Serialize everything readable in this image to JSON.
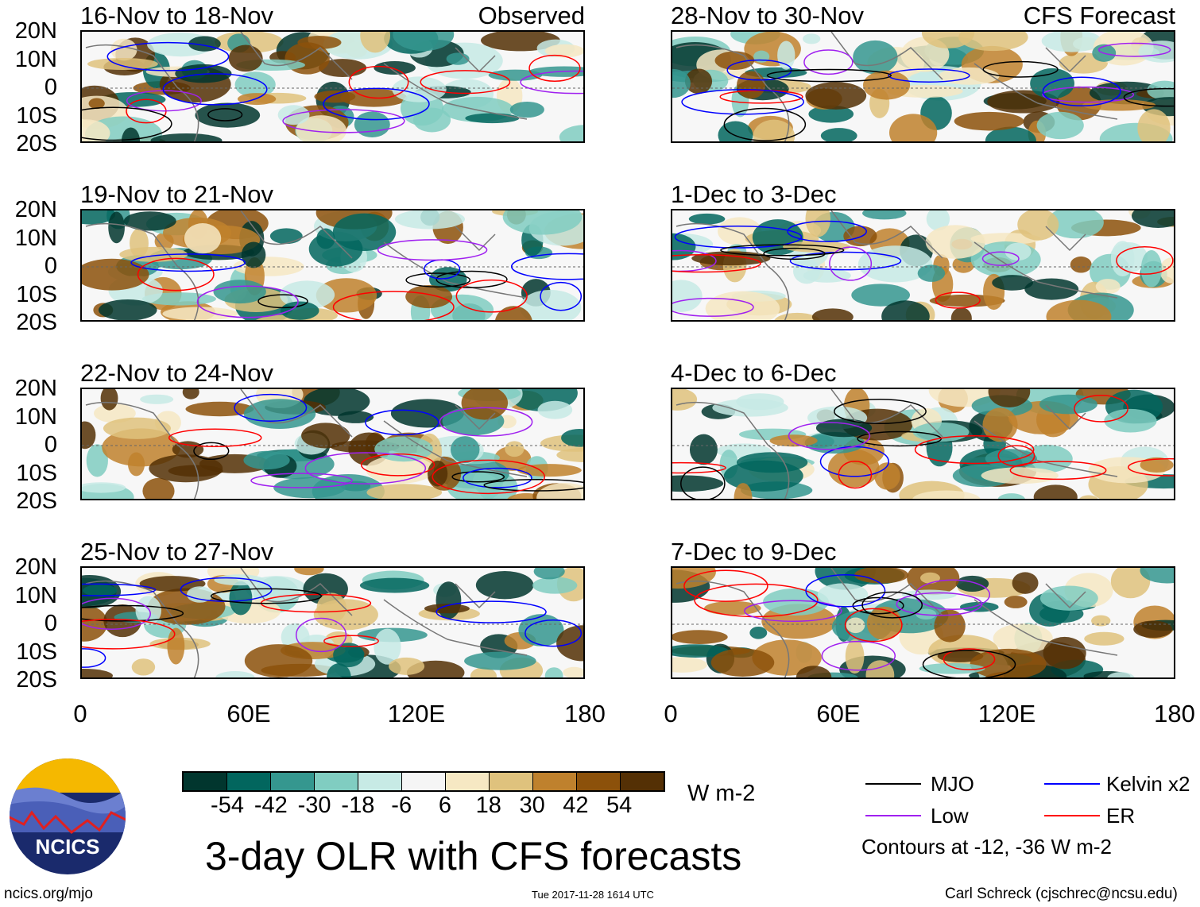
{
  "panels": [
    {
      "title": "16-Nov to 18-Nov",
      "tag": "Observed",
      "col": 0,
      "row": 0,
      "seed": 3
    },
    {
      "title": "19-Nov to 21-Nov",
      "tag": "",
      "col": 0,
      "row": 1,
      "seed": 7
    },
    {
      "title": "22-Nov to 24-Nov",
      "tag": "",
      "col": 0,
      "row": 2,
      "seed": 11
    },
    {
      "title": "25-Nov to 27-Nov",
      "tag": "",
      "col": 0,
      "row": 3,
      "seed": 19
    },
    {
      "title": "28-Nov to 30-Nov",
      "tag": "CFS Forecast",
      "col": 1,
      "row": 0,
      "seed": 23
    },
    {
      "title": "1-Dec to 3-Dec",
      "tag": "",
      "col": 1,
      "row": 1,
      "seed": 29
    },
    {
      "title": "4-Dec to 6-Dec",
      "tag": "",
      "col": 1,
      "row": 2,
      "seed": 31
    },
    {
      "title": "7-Dec to 9-Dec",
      "tag": "",
      "col": 1,
      "row": 3,
      "seed": 37
    }
  ],
  "lat_labels": [
    "20N",
    "10N",
    "0",
    "10S",
    "20S"
  ],
  "lon_labels": [
    "0",
    "60E",
    "120E",
    "180"
  ],
  "colorbar": {
    "colors": [
      "#01362e",
      "#02665e",
      "#35978f",
      "#80cdc1",
      "#c7eae5",
      "#f5f5f5",
      "#f6e8c3",
      "#dfc27d",
      "#bf812d",
      "#8c510a",
      "#543005"
    ],
    "labels": [
      "-54",
      "-42",
      "-30",
      "-18",
      "-6",
      "6",
      "18",
      "30",
      "42",
      "54"
    ],
    "units": "W m-2"
  },
  "legend": {
    "items": [
      {
        "label": "MJO",
        "color": "#000000"
      },
      {
        "label": "Kelvin x2",
        "color": "#0000ff"
      },
      {
        "label": "Low",
        "color": "#a020f0"
      },
      {
        "label": "ER",
        "color": "#ff0000"
      }
    ],
    "note": "Contours at -12, -36 W m-2"
  },
  "title": "3-day OLR with CFS forecasts",
  "timestamp": "Tue 2017-11-28 1614 UTC",
  "logo_text": "NCICS",
  "url": "ncics.org/mjo",
  "credit": "Carl Schreck (cjschrec@ncsu.edu)"
}
